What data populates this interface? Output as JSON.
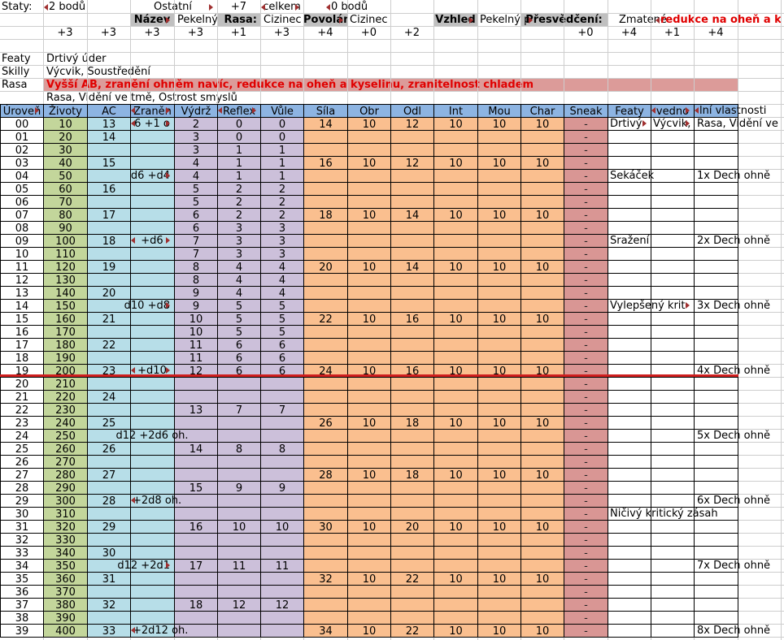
{
  "colors": {
    "header_blue": "#8db4e2",
    "green": "#c3d69b",
    "cyan": "#b7dee8",
    "purple": "#ccc0da",
    "orange": "#fabf8f",
    "rose": "#d99694",
    "label_gray": "#c0c0c0",
    "alert_red": "#e00000",
    "rasa_pink": "#dc9b99",
    "divider_red": "#d01f1f"
  },
  "top": {
    "staty_label": "Staty:",
    "staty_value": "2 bodů",
    "ostatni_label": "Ostatní",
    "ostatni_value": "+7",
    "celkem_label": "celkem",
    "celkem_value": "0 bodů",
    "nazev_label": "Název",
    "nazev_value": "Pekelný pes",
    "rasa_label": "Rasa:",
    "rasa_value": "Cizinec",
    "povolani_label": "Povolán",
    "povolani_value": "Cizinec",
    "vzhled_label": "Vzhled",
    "vzhled_value": "Pekelný p",
    "presvedceni_label": "Přesvědčení:",
    "presvedceni_value": "Zmatené",
    "presvedceni_overflow": "redukce na oheň a k",
    "bonuses": [
      {
        "col": 1,
        "v": "+3"
      },
      {
        "col": 2,
        "v": "+3"
      },
      {
        "col": 3,
        "v": "+3"
      },
      {
        "col": 4,
        "v": "+3"
      },
      {
        "col": 5,
        "v": "+1"
      },
      {
        "col": 6,
        "v": "+3"
      },
      {
        "col": 7,
        "v": "+4"
      },
      {
        "col": 8,
        "v": "+0"
      },
      {
        "col": 9,
        "v": "+2"
      },
      {
        "col": 13,
        "v": "+0"
      },
      {
        "col": 14,
        "v": "+4"
      },
      {
        "col": 15,
        "v": "+1"
      },
      {
        "col": 16,
        "v": "+4"
      }
    ],
    "featy_label": "Featy",
    "featy_value": "Drtivý úder",
    "skilly_label": "Skilly",
    "skilly_value": "Výcvik, Soustředění",
    "rasa_row_label": "Rasa",
    "rasa_row_value": "Vyšší AB, zranění ohněm navíc, redukce na oheň a kyselinu, zranitelnost chladem",
    "rasa_row2_value": "Rasa, Vidění ve tmě, Ostrost smyslů"
  },
  "table": {
    "headers": [
      "Úroveň",
      "Životy",
      "AC",
      "Zraněn",
      "Výdrž",
      "Reflex",
      "Vůle",
      "Síla",
      "Obr",
      "Odl",
      "Int",
      "Mou",
      "Char",
      "Sneak",
      "Featy",
      "vedno",
      "lní vlastnosti"
    ],
    "sneak_value": "-",
    "rows": [
      [
        "00",
        "10",
        "13",
        "2",
        "0",
        "0",
        "14",
        "10",
        "12",
        "10",
        "10",
        "10",
        "Drtivý",
        "Výcvik,",
        "Rasa, Vidění ve"
      ],
      [
        "01",
        "20",
        "14",
        "3",
        "0",
        "0",
        "",
        "",
        "",
        "",
        "",
        "",
        "",
        "",
        ""
      ],
      [
        "02",
        "30",
        "",
        "3",
        "1",
        "1",
        "",
        "",
        "",
        "",
        "",
        "",
        "",
        "",
        ""
      ],
      [
        "03",
        "40",
        "15",
        "4",
        "1",
        "1",
        "16",
        "10",
        "12",
        "10",
        "10",
        "10",
        "",
        "",
        ""
      ],
      [
        "04",
        "50",
        "",
        "4",
        "1",
        "1",
        "",
        "",
        "",
        "",
        "",
        "",
        "Sekáček",
        "",
        "1x Dech ohně"
      ],
      [
        "05",
        "60",
        "16",
        "5",
        "2",
        "2",
        "",
        "",
        "",
        "",
        "",
        "",
        "",
        "",
        ""
      ],
      [
        "06",
        "70",
        "",
        "5",
        "2",
        "2",
        "",
        "",
        "",
        "",
        "",
        "",
        "",
        "",
        ""
      ],
      [
        "07",
        "80",
        "17",
        "6",
        "2",
        "2",
        "18",
        "10",
        "14",
        "10",
        "10",
        "10",
        "",
        "",
        ""
      ],
      [
        "08",
        "90",
        "",
        "6",
        "3",
        "3",
        "",
        "",
        "",
        "",
        "",
        "",
        "",
        "",
        ""
      ],
      [
        "09",
        "100",
        "18",
        "7",
        "3",
        "3",
        "",
        "",
        "",
        "",
        "",
        "",
        "Sražení",
        "",
        "2x Dech ohně"
      ],
      [
        "10",
        "110",
        "",
        "7",
        "3",
        "3",
        "",
        "",
        "",
        "",
        "",
        "",
        "",
        "",
        ""
      ],
      [
        "11",
        "120",
        "19",
        "8",
        "4",
        "4",
        "20",
        "10",
        "14",
        "10",
        "10",
        "10",
        "",
        "",
        ""
      ],
      [
        "12",
        "130",
        "",
        "8",
        "4",
        "4",
        "",
        "",
        "",
        "",
        "",
        "",
        "",
        "",
        ""
      ],
      [
        "13",
        "140",
        "20",
        "9",
        "4",
        "4",
        "",
        "",
        "",
        "",
        "",
        "",
        "",
        "",
        ""
      ],
      [
        "14",
        "150",
        "",
        "9",
        "5",
        "5",
        "",
        "",
        "",
        "",
        "",
        "",
        "Vylepšený krit",
        "",
        "3x Dech ohně"
      ],
      [
        "15",
        "160",
        "21",
        "10",
        "5",
        "5",
        "22",
        "10",
        "16",
        "10",
        "10",
        "10",
        "",
        "",
        ""
      ],
      [
        "16",
        "170",
        "",
        "10",
        "5",
        "5",
        "",
        "",
        "",
        "",
        "",
        "",
        "",
        "",
        ""
      ],
      [
        "17",
        "180",
        "22",
        "11",
        "6",
        "6",
        "",
        "",
        "",
        "",
        "",
        "",
        "",
        "",
        ""
      ],
      [
        "18",
        "190",
        "",
        "11",
        "6",
        "6",
        "",
        "",
        "",
        "",
        "",
        "",
        "",
        "",
        ""
      ],
      [
        "19",
        "200",
        "23",
        "12",
        "6",
        "6",
        "24",
        "10",
        "16",
        "10",
        "10",
        "10",
        "",
        "",
        "4x Dech ohně"
      ],
      [
        "20",
        "210",
        "",
        "",
        "",
        "",
        "",
        "",
        "",
        "",
        "",
        "",
        "",
        "",
        ""
      ],
      [
        "21",
        "220",
        "24",
        "",
        "",
        "",
        "",
        "",
        "",
        "",
        "",
        "",
        "",
        "",
        ""
      ],
      [
        "22",
        "230",
        "",
        "13",
        "7",
        "7",
        "",
        "",
        "",
        "",
        "",
        "",
        "",
        "",
        ""
      ],
      [
        "23",
        "240",
        "25",
        "",
        "",
        "",
        "26",
        "10",
        "18",
        "10",
        "10",
        "10",
        "",
        "",
        ""
      ],
      [
        "24",
        "250",
        "",
        "",
        "",
        "",
        "",
        "",
        "",
        "",
        "",
        "",
        "",
        "",
        "5x Dech ohně"
      ],
      [
        "25",
        "260",
        "26",
        "14",
        "8",
        "8",
        "",
        "",
        "",
        "",
        "",
        "",
        "",
        "",
        ""
      ],
      [
        "26",
        "270",
        "",
        "",
        "",
        "",
        "",
        "",
        "",
        "",
        "",
        "",
        "",
        "",
        ""
      ],
      [
        "27",
        "280",
        "27",
        "",
        "",
        "",
        "28",
        "10",
        "18",
        "10",
        "10",
        "10",
        "",
        "",
        ""
      ],
      [
        "28",
        "290",
        "",
        "15",
        "9",
        "9",
        "",
        "",
        "",
        "",
        "",
        "",
        "",
        "",
        ""
      ],
      [
        "29",
        "300",
        "28",
        "",
        "",
        "",
        "",
        "",
        "",
        "",
        "",
        "",
        "",
        "",
        "6x Dech ohně"
      ],
      [
        "30",
        "310",
        "",
        "",
        "",
        "",
        "",
        "",
        "",
        "",
        "",
        "",
        "Ničivý kritický zásah",
        "",
        ""
      ],
      [
        "31",
        "320",
        "29",
        "16",
        "10",
        "10",
        "30",
        "10",
        "20",
        "10",
        "10",
        "10",
        "",
        "",
        ""
      ],
      [
        "32",
        "330",
        "",
        "",
        "",
        "",
        "",
        "",
        "",
        "",
        "",
        "",
        "",
        "",
        ""
      ],
      [
        "33",
        "340",
        "30",
        "",
        "",
        "",
        "",
        "",
        "",
        "",
        "",
        "",
        "",
        "",
        ""
      ],
      [
        "34",
        "350",
        "",
        "17",
        "11",
        "11",
        "",
        "",
        "",
        "",
        "",
        "",
        "",
        "",
        "7x Dech ohně"
      ],
      [
        "35",
        "360",
        "31",
        "",
        "",
        "",
        "32",
        "10",
        "22",
        "10",
        "10",
        "10",
        "",
        "",
        ""
      ],
      [
        "36",
        "370",
        "",
        "",
        "",
        "",
        "",
        "",
        "",
        "",
        "",
        "",
        "",
        "",
        ""
      ],
      [
        "37",
        "380",
        "32",
        "18",
        "12",
        "12",
        "",
        "",
        "",
        "",
        "",
        "",
        "",
        "",
        ""
      ],
      [
        "38",
        "390",
        "",
        "",
        "",
        "",
        "",
        "",
        "",
        "",
        "",
        "",
        "",
        "",
        ""
      ],
      [
        "39",
        "400",
        "33",
        "",
        "",
        "",
        "34",
        "10",
        "22",
        "10",
        "10",
        "10",
        "",
        "",
        "8x Dech ohně"
      ]
    ],
    "zraneni": [
      {
        "row": 0,
        "text": "6 +1 o",
        "mode": "centerD"
      },
      {
        "row": 4,
        "text": "d6 +d4",
        "mode": "rightCD"
      },
      {
        "row": 9,
        "text": "+d6",
        "mode": "centerD"
      },
      {
        "row": 14,
        "text": "d10 +d8",
        "mode": "rightCD"
      },
      {
        "row": 19,
        "text": "+d10",
        "mode": "centerD"
      },
      {
        "row": 24,
        "text": "d12 +2d6 oh.",
        "mode": "centerCE"
      },
      {
        "row": 29,
        "text": "+2d8 oh.",
        "mode": "leftDE"
      },
      {
        "row": 34,
        "text": "d12 +2d1",
        "mode": "rightCD"
      },
      {
        "row": 39,
        "text": "+2d12 oh.",
        "mode": "leftDE"
      }
    ]
  }
}
